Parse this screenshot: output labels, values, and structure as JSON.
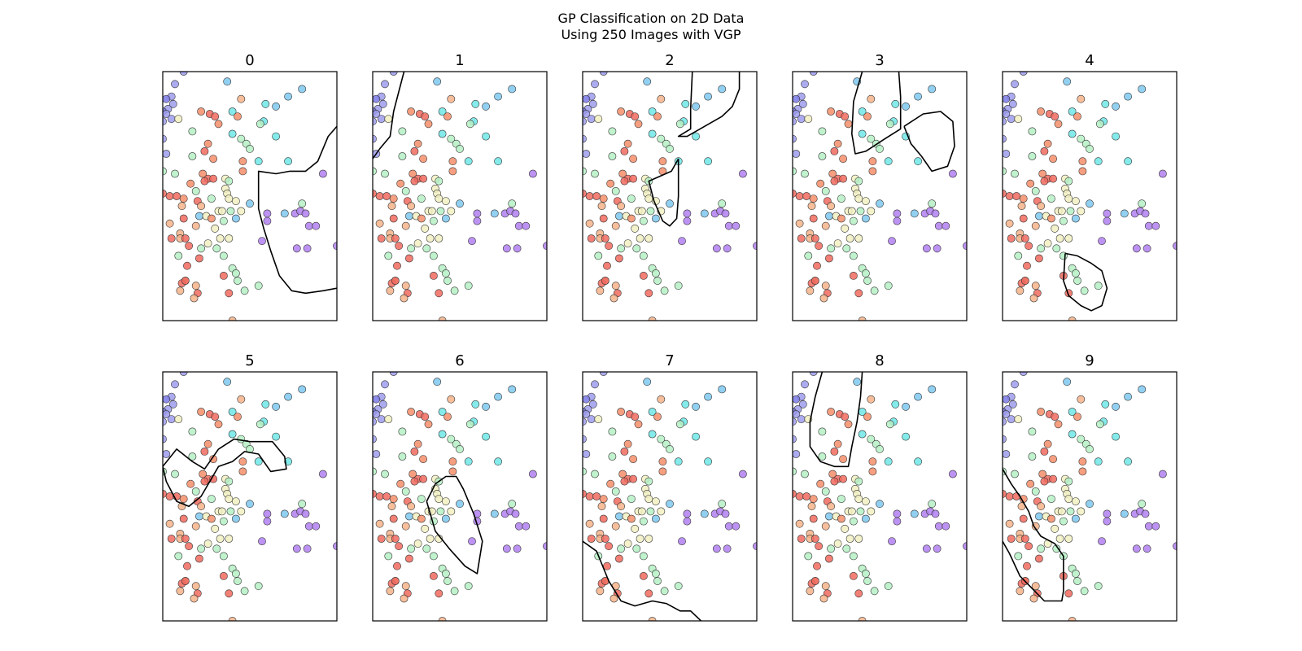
{
  "figure": {
    "title_line1": "GP Classification on 2D Data",
    "title_line2": "Using 250 Images with VGP"
  },
  "chart_data": {
    "type": "scatter",
    "title": "GP Classification on 2D Data\nUsing 250 Images with VGP",
    "xlim": [
      0,
      1
    ],
    "ylim": [
      0,
      1
    ],
    "axes_ticks": "none",
    "grid": false,
    "class_colors": {
      "0": "#f58e6a",
      "1": "#7ec8ef",
      "2": "#9d9cec",
      "3": "#6fe6e6",
      "4": "#b07ff0",
      "5": "#b5f0c4",
      "6": "#f06a5e",
      "7": "#7b7ae6",
      "8": "#f4b38a",
      "9": "#f1f0c2"
    },
    "points": [
      [
        0.12,
        1.0,
        2
      ],
      [
        0.37,
        0.96,
        1
      ],
      [
        0.07,
        0.95,
        2
      ],
      [
        0.8,
        0.93,
        1
      ],
      [
        0.05,
        0.9,
        2
      ],
      [
        0.02,
        0.89,
        7
      ],
      [
        0.06,
        0.87,
        2
      ],
      [
        0.03,
        0.85,
        2
      ],
      [
        0.0,
        0.84,
        7
      ],
      [
        0.02,
        0.83,
        2
      ],
      [
        0.05,
        0.81,
        2
      ],
      [
        0.0,
        0.8,
        2
      ],
      [
        0.72,
        0.9,
        1
      ],
      [
        0.59,
        0.87,
        3
      ],
      [
        0.65,
        0.86,
        1
      ],
      [
        0.45,
        0.89,
        8
      ],
      [
        0.22,
        0.84,
        0
      ],
      [
        0.27,
        0.83,
        6
      ],
      [
        0.3,
        0.82,
        6
      ],
      [
        0.4,
        0.84,
        3
      ],
      [
        0.43,
        0.82,
        0
      ],
      [
        0.09,
        0.81,
        9
      ],
      [
        0.32,
        0.79,
        0
      ],
      [
        0.58,
        0.8,
        3
      ],
      [
        0.56,
        0.79,
        5
      ],
      [
        0.17,
        0.76,
        5
      ],
      [
        0.4,
        0.75,
        3
      ],
      [
        0.65,
        0.74,
        3
      ],
      [
        0.45,
        0.73,
        5
      ],
      [
        0.48,
        0.71,
        5
      ],
      [
        0.0,
        0.73,
        2
      ],
      [
        0.26,
        0.71,
        0
      ],
      [
        0.24,
        0.68,
        6
      ],
      [
        0.5,
        0.69,
        5
      ],
      [
        0.72,
        0.64,
        3
      ],
      [
        0.02,
        0.67,
        2
      ],
      [
        0.17,
        0.66,
        5
      ],
      [
        0.29,
        0.65,
        0
      ],
      [
        0.46,
        0.64,
        0
      ],
      [
        0.55,
        0.64,
        3
      ],
      [
        0.0,
        0.6,
        5
      ],
      [
        0.07,
        0.59,
        5
      ],
      [
        0.23,
        0.59,
        0
      ],
      [
        0.46,
        0.6,
        0
      ],
      [
        0.92,
        0.59,
        4
      ],
      [
        0.26,
        0.57,
        6
      ],
      [
        0.24,
        0.56,
        6
      ],
      [
        0.29,
        0.57,
        6
      ],
      [
        0.36,
        0.57,
        9
      ],
      [
        0.38,
        0.56,
        5
      ],
      [
        0.16,
        0.55,
        0
      ],
      [
        0.36,
        0.53,
        9
      ],
      [
        0.19,
        0.52,
        5
      ],
      [
        0.37,
        0.51,
        9
      ],
      [
        0.0,
        0.51,
        6
      ],
      [
        0.04,
        0.5,
        6
      ],
      [
        0.08,
        0.5,
        6
      ],
      [
        0.12,
        0.49,
        0
      ],
      [
        0.2,
        0.48,
        6
      ],
      [
        0.28,
        0.49,
        5
      ],
      [
        0.38,
        0.49,
        9
      ],
      [
        0.42,
        0.48,
        9
      ],
      [
        0.5,
        0.47,
        1
      ],
      [
        0.8,
        0.47,
        5
      ],
      [
        0.11,
        0.46,
        8
      ],
      [
        0.22,
        0.46,
        8
      ],
      [
        0.32,
        0.44,
        9
      ],
      [
        0.34,
        0.44,
        9
      ],
      [
        0.39,
        0.44,
        5
      ],
      [
        0.45,
        0.44,
        9
      ],
      [
        0.6,
        0.43,
        4
      ],
      [
        0.7,
        0.43,
        1
      ],
      [
        0.76,
        0.43,
        4
      ],
      [
        0.79,
        0.44,
        4
      ],
      [
        0.82,
        0.43,
        4
      ],
      [
        0.12,
        0.41,
        6
      ],
      [
        0.21,
        0.42,
        1
      ],
      [
        0.25,
        0.42,
        9
      ],
      [
        0.28,
        0.41,
        0
      ],
      [
        0.35,
        0.4,
        5
      ],
      [
        0.42,
        0.41,
        1
      ],
      [
        0.6,
        0.4,
        4
      ],
      [
        0.84,
        0.38,
        4
      ],
      [
        0.88,
        0.38,
        4
      ],
      [
        0.04,
        0.39,
        8
      ],
      [
        0.19,
        0.38,
        8
      ],
      [
        0.3,
        0.37,
        9
      ],
      [
        0.1,
        0.35,
        8
      ],
      [
        0.05,
        0.33,
        6
      ],
      [
        0.1,
        0.33,
        8
      ],
      [
        0.13,
        0.33,
        6
      ],
      [
        0.33,
        0.33,
        9
      ],
      [
        0.38,
        0.33,
        9
      ],
      [
        0.57,
        0.32,
        4
      ],
      [
        0.26,
        0.31,
        9
      ],
      [
        0.15,
        0.3,
        6
      ],
      [
        0.22,
        0.29,
        5
      ],
      [
        0.31,
        0.29,
        5
      ],
      [
        0.77,
        0.29,
        4
      ],
      [
        0.83,
        0.29,
        4
      ],
      [
        1.0,
        0.3,
        4
      ],
      [
        0.35,
        0.26,
        5
      ],
      [
        0.21,
        0.25,
        6
      ],
      [
        0.09,
        0.26,
        5
      ],
      [
        0.14,
        0.22,
        6
      ],
      [
        0.4,
        0.21,
        5
      ],
      [
        0.42,
        0.19,
        5
      ],
      [
        0.35,
        0.18,
        6
      ],
      [
        0.43,
        0.16,
        5
      ],
      [
        0.13,
        0.16,
        8
      ],
      [
        0.11,
        0.15,
        6
      ],
      [
        0.13,
        0.16,
        6
      ],
      [
        0.19,
        0.14,
        8
      ],
      [
        0.55,
        0.14,
        5
      ],
      [
        0.1,
        0.12,
        8
      ],
      [
        0.2,
        0.11,
        6
      ],
      [
        0.47,
        0.12,
        5
      ],
      [
        0.38,
        0.11,
        6
      ],
      [
        0.18,
        0.09,
        8
      ],
      [
        0.4,
        0.0,
        8
      ]
    ],
    "panels": [
      {
        "label": "0",
        "boundaries": [
          [
            [
              1.0,
              0.78
            ],
            [
              0.95,
              0.74
            ],
            [
              0.89,
              0.64
            ],
            [
              0.82,
              0.6
            ],
            [
              0.73,
              0.6
            ],
            [
              0.65,
              0.59
            ],
            [
              0.55,
              0.6
            ],
            [
              0.55,
              0.52
            ],
            [
              0.55,
              0.45
            ],
            [
              0.58,
              0.37
            ],
            [
              0.62,
              0.28
            ],
            [
              0.67,
              0.18
            ],
            [
              0.74,
              0.12
            ],
            [
              0.82,
              0.11
            ],
            [
              0.92,
              0.12
            ],
            [
              1.0,
              0.13
            ]
          ]
        ]
      },
      {
        "label": "1",
        "boundaries": [
          [
            [
              0.18,
              1.0
            ],
            [
              0.15,
              0.92
            ],
            [
              0.12,
              0.84
            ],
            [
              0.1,
              0.74
            ],
            [
              0.04,
              0.69
            ],
            [
              0.0,
              0.65
            ]
          ]
        ]
      },
      {
        "label": "2",
        "boundaries": [
          [
            [
              0.63,
              1.0
            ],
            [
              0.62,
              0.85
            ],
            [
              0.62,
              0.77
            ],
            [
              0.55,
              0.74
            ],
            [
              0.6,
              0.74
            ],
            [
              0.7,
              0.78
            ],
            [
              0.8,
              0.82
            ],
            [
              0.86,
              0.86
            ],
            [
              0.9,
              0.93
            ],
            [
              0.9,
              1.0
            ]
          ],
          [
            [
              0.55,
              0.65
            ],
            [
              0.51,
              0.6
            ],
            [
              0.38,
              0.56
            ],
            [
              0.41,
              0.48
            ],
            [
              0.46,
              0.4
            ],
            [
              0.5,
              0.38
            ],
            [
              0.54,
              0.41
            ],
            [
              0.55,
              0.5
            ],
            [
              0.55,
              0.6
            ],
            [
              0.55,
              0.65
            ]
          ]
        ]
      },
      {
        "label": "3",
        "boundaries": [
          [
            [
              0.4,
              1.0
            ],
            [
              0.35,
              0.88
            ],
            [
              0.34,
              0.75
            ],
            [
              0.36,
              0.67
            ],
            [
              0.42,
              0.68
            ],
            [
              0.53,
              0.73
            ],
            [
              0.62,
              0.77
            ],
            [
              0.62,
              0.9
            ],
            [
              0.61,
              1.0
            ]
          ],
          [
            [
              0.64,
              0.78
            ],
            [
              0.75,
              0.83
            ],
            [
              0.85,
              0.84
            ],
            [
              0.92,
              0.8
            ],
            [
              0.93,
              0.7
            ],
            [
              0.89,
              0.62
            ],
            [
              0.8,
              0.6
            ],
            [
              0.74,
              0.66
            ],
            [
              0.68,
              0.71
            ],
            [
              0.64,
              0.78
            ]
          ]
        ]
      },
      {
        "label": "4",
        "boundaries": [
          [
            [
              0.36,
              0.27
            ],
            [
              0.43,
              0.26
            ],
            [
              0.51,
              0.23
            ],
            [
              0.57,
              0.2
            ],
            [
              0.6,
              0.13
            ],
            [
              0.57,
              0.06
            ],
            [
              0.51,
              0.04
            ],
            [
              0.45,
              0.06
            ],
            [
              0.38,
              0.1
            ],
            [
              0.35,
              0.16
            ],
            [
              0.36,
              0.27
            ]
          ]
        ]
      },
      {
        "label": "5",
        "boundaries": [
          [
            [
              0.0,
              0.62
            ],
            [
              0.08,
              0.69
            ],
            [
              0.17,
              0.64
            ],
            [
              0.24,
              0.61
            ],
            [
              0.32,
              0.69
            ],
            [
              0.41,
              0.73
            ],
            [
              0.5,
              0.72
            ],
            [
              0.63,
              0.72
            ],
            [
              0.7,
              0.66
            ],
            [
              0.71,
              0.61
            ],
            [
              0.62,
              0.6
            ],
            [
              0.55,
              0.67
            ],
            [
              0.47,
              0.68
            ],
            [
              0.4,
              0.64
            ],
            [
              0.32,
              0.62
            ],
            [
              0.22,
              0.5
            ],
            [
              0.15,
              0.46
            ],
            [
              0.08,
              0.48
            ],
            [
              0.02,
              0.56
            ],
            [
              0.0,
              0.62
            ]
          ]
        ]
      },
      {
        "label": "6",
        "boundaries": [
          [
            [
              0.31,
              0.48
            ],
            [
              0.36,
              0.55
            ],
            [
              0.42,
              0.58
            ],
            [
              0.48,
              0.58
            ],
            [
              0.52,
              0.53
            ],
            [
              0.58,
              0.43
            ],
            [
              0.63,
              0.32
            ],
            [
              0.6,
              0.19
            ],
            [
              0.53,
              0.22
            ],
            [
              0.44,
              0.29
            ],
            [
              0.36,
              0.36
            ],
            [
              0.31,
              0.48
            ]
          ]
        ]
      },
      {
        "label": "7",
        "boundaries": [
          [
            [
              0.0,
              0.32
            ],
            [
              0.08,
              0.28
            ],
            [
              0.15,
              0.16
            ],
            [
              0.22,
              0.08
            ],
            [
              0.3,
              0.06
            ],
            [
              0.4,
              0.08
            ],
            [
              0.48,
              0.07
            ],
            [
              0.56,
              0.04
            ],
            [
              0.62,
              0.04
            ],
            [
              0.68,
              0.0
            ]
          ]
        ]
      },
      {
        "label": "8",
        "boundaries": [
          [
            [
              0.17,
              1.0
            ],
            [
              0.13,
              0.9
            ],
            [
              0.1,
              0.8
            ],
            [
              0.1,
              0.7
            ],
            [
              0.16,
              0.64
            ],
            [
              0.24,
              0.62
            ],
            [
              0.32,
              0.62
            ],
            [
              0.34,
              0.7
            ],
            [
              0.37,
              0.8
            ],
            [
              0.39,
              0.9
            ],
            [
              0.4,
              1.0
            ]
          ]
        ]
      },
      {
        "label": "9",
        "boundaries": [
          [
            [
              0.0,
              0.61
            ],
            [
              0.05,
              0.55
            ],
            [
              0.1,
              0.5
            ],
            [
              0.15,
              0.44
            ],
            [
              0.18,
              0.38
            ],
            [
              0.22,
              0.34
            ],
            [
              0.3,
              0.31
            ],
            [
              0.35,
              0.26
            ],
            [
              0.35,
              0.12
            ],
            [
              0.34,
              0.08
            ],
            [
              0.24,
              0.08
            ],
            [
              0.17,
              0.13
            ],
            [
              0.1,
              0.18
            ],
            [
              0.04,
              0.27
            ],
            [
              0.0,
              0.32
            ]
          ]
        ]
      }
    ]
  }
}
